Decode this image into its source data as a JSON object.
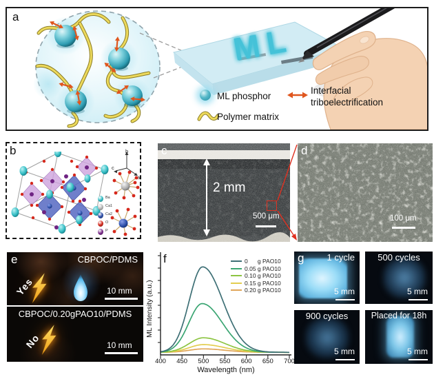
{
  "panels": {
    "a": {
      "label": "a",
      "written_text": "ML",
      "legend": {
        "phosphor": "ML phosphor",
        "triboelectrification": "Interfacial triboelectrification",
        "polymer": "Polymer matrix"
      }
    },
    "b": {
      "label": "b",
      "axis_labels": {
        "up": "b",
        "left": "c",
        "diag": "a"
      },
      "atom_legend": [
        {
          "name": "Ba",
          "color": "#35bdc4"
        },
        {
          "name": "Ca1",
          "color": "#b8b8b8"
        },
        {
          "name": "Ca2",
          "color": "#2b4ea8"
        },
        {
          "name": "O",
          "color": "#d42a1e"
        },
        {
          "name": "P",
          "color": "#7b2d8b"
        }
      ]
    },
    "c": {
      "label": "c",
      "thickness_label": "2 mm",
      "scalebar": "500 μm"
    },
    "d": {
      "label": "d",
      "scalebar": "100 μm"
    },
    "e": {
      "label": "e",
      "top": {
        "title": "CBPOC/PDMS",
        "verdict": "Yes",
        "scalebar": "10 mm"
      },
      "bottom": {
        "title": "CBPOC/0.20gPAO10/PDMS",
        "verdict": "No",
        "scalebar": "10 mm"
      }
    },
    "f": {
      "label": "f"
    },
    "g": {
      "label": "g",
      "photos": [
        {
          "caption": "1 cycle",
          "scalebar": "5 mm",
          "glow": "bright"
        },
        {
          "caption": "500 cycles",
          "scalebar": "5 mm",
          "glow": "dim"
        },
        {
          "caption": "900 cycles",
          "scalebar": "5 mm",
          "glow": "dim"
        },
        {
          "caption": "Placed for 18h",
          "scalebar": "5 mm",
          "glow": "medium"
        }
      ]
    }
  },
  "chart_data": {
    "type": "line",
    "title": "",
    "xlabel": "Wavelength (nm)",
    "ylabel": "ML Intensity (a.u.)",
    "xlim": [
      400,
      700
    ],
    "xticks": [
      400,
      450,
      500,
      550,
      600,
      650,
      700
    ],
    "ylim": [
      0,
      1.05
    ],
    "grid": false,
    "legend_position": "top-right",
    "series": [
      {
        "name": "0      g PAO10",
        "color": "#3d6f75",
        "peak_nm": 498,
        "peak_rel_intensity": 1.0,
        "sigma_left_nm": 31,
        "sigma_right_nm": 47
      },
      {
        "name": "0.05 g PAO10",
        "color": "#3aa572",
        "peak_nm": 497,
        "peak_rel_intensity": 0.57,
        "sigma_left_nm": 31,
        "sigma_right_nm": 47
      },
      {
        "name": "0.10 g PAO10",
        "color": "#8cc441",
        "peak_nm": 500,
        "peak_rel_intensity": 0.17,
        "sigma_left_nm": 33,
        "sigma_right_nm": 50
      },
      {
        "name": "0.15 g PAO10",
        "color": "#e3cd4f",
        "peak_nm": 500,
        "peak_rel_intensity": 0.09,
        "sigma_left_nm": 33,
        "sigma_right_nm": 50
      },
      {
        "name": "0.20 g PAO10",
        "color": "#e0a558",
        "peak_nm": 500,
        "peak_rel_intensity": 0.04,
        "sigma_left_nm": 33,
        "sigma_right_nm": 50
      }
    ]
  }
}
